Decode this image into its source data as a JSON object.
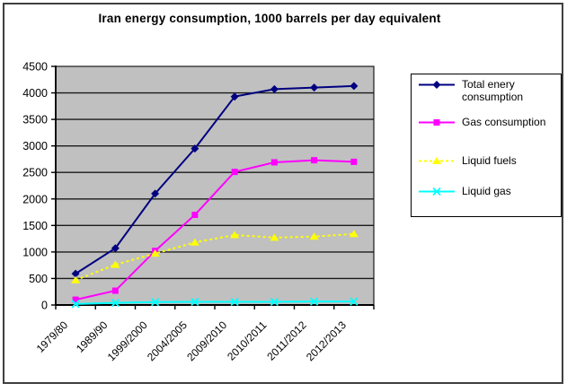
{
  "frame": {
    "background": "#FFFFFF",
    "border_color": "#3F3F3F"
  },
  "chart_data": {
    "type": "line",
    "title": "Iran energy consumption, 1000 barrels per day equivalent",
    "categories": [
      "1979/80",
      "1989/90",
      "1999/2000",
      "2004/2005",
      "2009/2010",
      "2010/2011",
      "2011/2012",
      "2012/2013"
    ],
    "series": [
      {
        "name": "Total enery consumption",
        "color": "#000080",
        "marker": "diamond",
        "dash": false,
        "values": [
          590,
          1070,
          2100,
          2950,
          3930,
          4070,
          4100,
          4130
        ]
      },
      {
        "name": "Gas consumption",
        "color": "#FF00FF",
        "marker": "square",
        "dash": false,
        "values": [
          100,
          270,
          1020,
          1700,
          2510,
          2690,
          2730,
          2700
        ]
      },
      {
        "name": "Liquid fuels",
        "color": "#FFFF00",
        "marker": "triangle",
        "dash": true,
        "values": [
          470,
          760,
          970,
          1180,
          1320,
          1270,
          1290,
          1340
        ]
      },
      {
        "name": "Liquid gas",
        "color": "#00FFFF",
        "marker": "x",
        "dash": false,
        "values": [
          20,
          40,
          55,
          60,
          60,
          60,
          65,
          65
        ]
      }
    ],
    "xlabel": "",
    "ylabel": "",
    "ylim": [
      0,
      4500
    ],
    "yticks": [
      0,
      500,
      1000,
      1500,
      2000,
      2500,
      3000,
      3500,
      4000,
      4500
    ],
    "grid": "horizontal",
    "gridline_color": "#1A1A1A",
    "axis_color": "#000000",
    "text_color": "#000000",
    "plot_bg": "#C0C0C0",
    "legend_position": "right",
    "legend_bg": "#FFFFFF",
    "legend_border": "#000000"
  }
}
